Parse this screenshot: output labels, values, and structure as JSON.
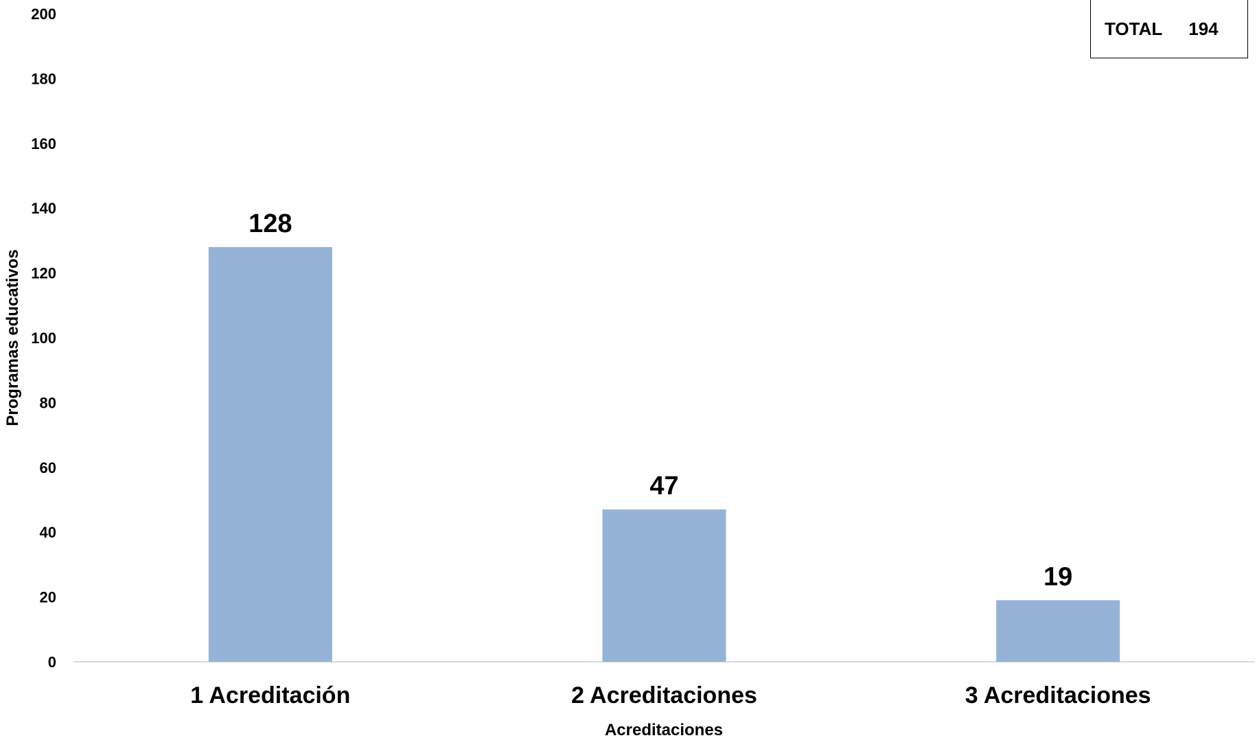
{
  "chart_data": {
    "type": "bar",
    "categories": [
      "1 Acreditación",
      "2 Acreditaciones",
      "3 Acreditaciones"
    ],
    "values": [
      128,
      47,
      19
    ],
    "xlabel": "Acreditaciones",
    "ylabel": "Programas educativos",
    "ylim": [
      0,
      200
    ],
    "yticks": [
      0,
      20,
      40,
      60,
      80,
      100,
      120,
      140,
      160,
      180,
      200
    ],
    "grid": false,
    "bar_color": "#95B3D7",
    "annotation": {
      "label": "TOTAL",
      "value": "194"
    }
  }
}
